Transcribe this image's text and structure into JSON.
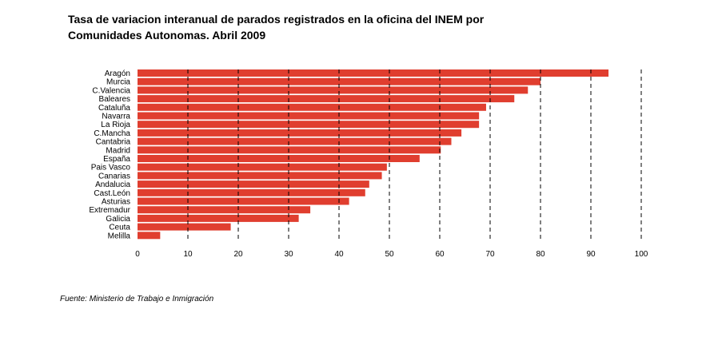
{
  "title_line1": "Tasa de variacion interanual de parados registrados en la oficina del INEM por",
  "title_line2": "Comunidades Autonomas. Abril 2009",
  "source": "Fuente: Ministerio de Trabajo e Inmigración",
  "colors": {
    "bar": "#e03e2f",
    "gridline": "#000000",
    "text": "#000000"
  },
  "chart_data": {
    "type": "bar",
    "orientation": "horizontal",
    "title": "Tasa de variacion interanual de parados registrados en la oficina del INEM por Comunidades Autonomas. Abril 2009",
    "xlabel": "",
    "ylabel": "",
    "xlim": [
      0,
      100
    ],
    "xticks": [
      0,
      10,
      20,
      30,
      40,
      50,
      60,
      70,
      80,
      90,
      100
    ],
    "grid": "vertical dashed",
    "legend": "none",
    "categories": [
      "Aragón",
      "Murcia",
      "C.Valencia",
      "Baleares",
      "Cataluña",
      "Navarra",
      "La Rioja",
      "C.Mancha",
      "Cantabria",
      "Madrid",
      "España",
      "Pais Vasco",
      "Canarias",
      "Andalucia",
      "Cast.León",
      "Asturias",
      "Extremadur",
      "Galicia",
      "Ceuta",
      "Melilla"
    ],
    "values": [
      93.5,
      80.0,
      77.5,
      74.8,
      69.2,
      67.8,
      67.8,
      64.3,
      62.3,
      60.2,
      56.0,
      49.5,
      48.5,
      46.0,
      45.2,
      42.0,
      34.3,
      32.0,
      18.5,
      4.5
    ]
  }
}
